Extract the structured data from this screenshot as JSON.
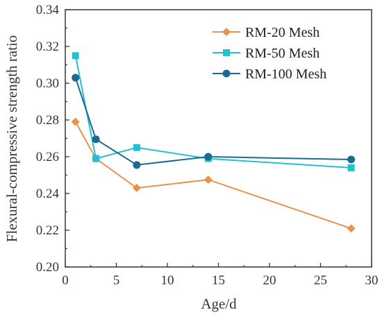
{
  "chart_data": {
    "type": "line",
    "xlabel": "Age/d",
    "ylabel": "Flexural-compressive strength ratio",
    "xlim": [
      0,
      30
    ],
    "ylim": [
      0.2,
      0.34
    ],
    "x_ticks": [
      "0",
      "5",
      "10",
      "15",
      "20",
      "25",
      "30"
    ],
    "y_ticks": [
      "0.20",
      "0.22",
      "0.24",
      "0.26",
      "0.28",
      "0.30",
      "0.32",
      "0.34"
    ],
    "x": [
      1,
      3,
      7,
      14,
      28
    ],
    "grid": false,
    "legend_position": "top-right",
    "series": [
      {
        "name": "RM-20 Mesh",
        "marker": "diamond",
        "color": "#E8924A",
        "values": [
          0.279,
          0.259,
          0.243,
          0.2475,
          0.221
        ]
      },
      {
        "name": "RM-50 Mesh",
        "marker": "square",
        "color": "#23C1CF",
        "values": [
          0.315,
          0.259,
          0.265,
          0.259,
          0.254
        ]
      },
      {
        "name": "RM-100 Mesh",
        "marker": "circle",
        "color": "#1B6A8F",
        "values": [
          0.303,
          0.2695,
          0.2555,
          0.26,
          0.2585
        ]
      }
    ]
  }
}
